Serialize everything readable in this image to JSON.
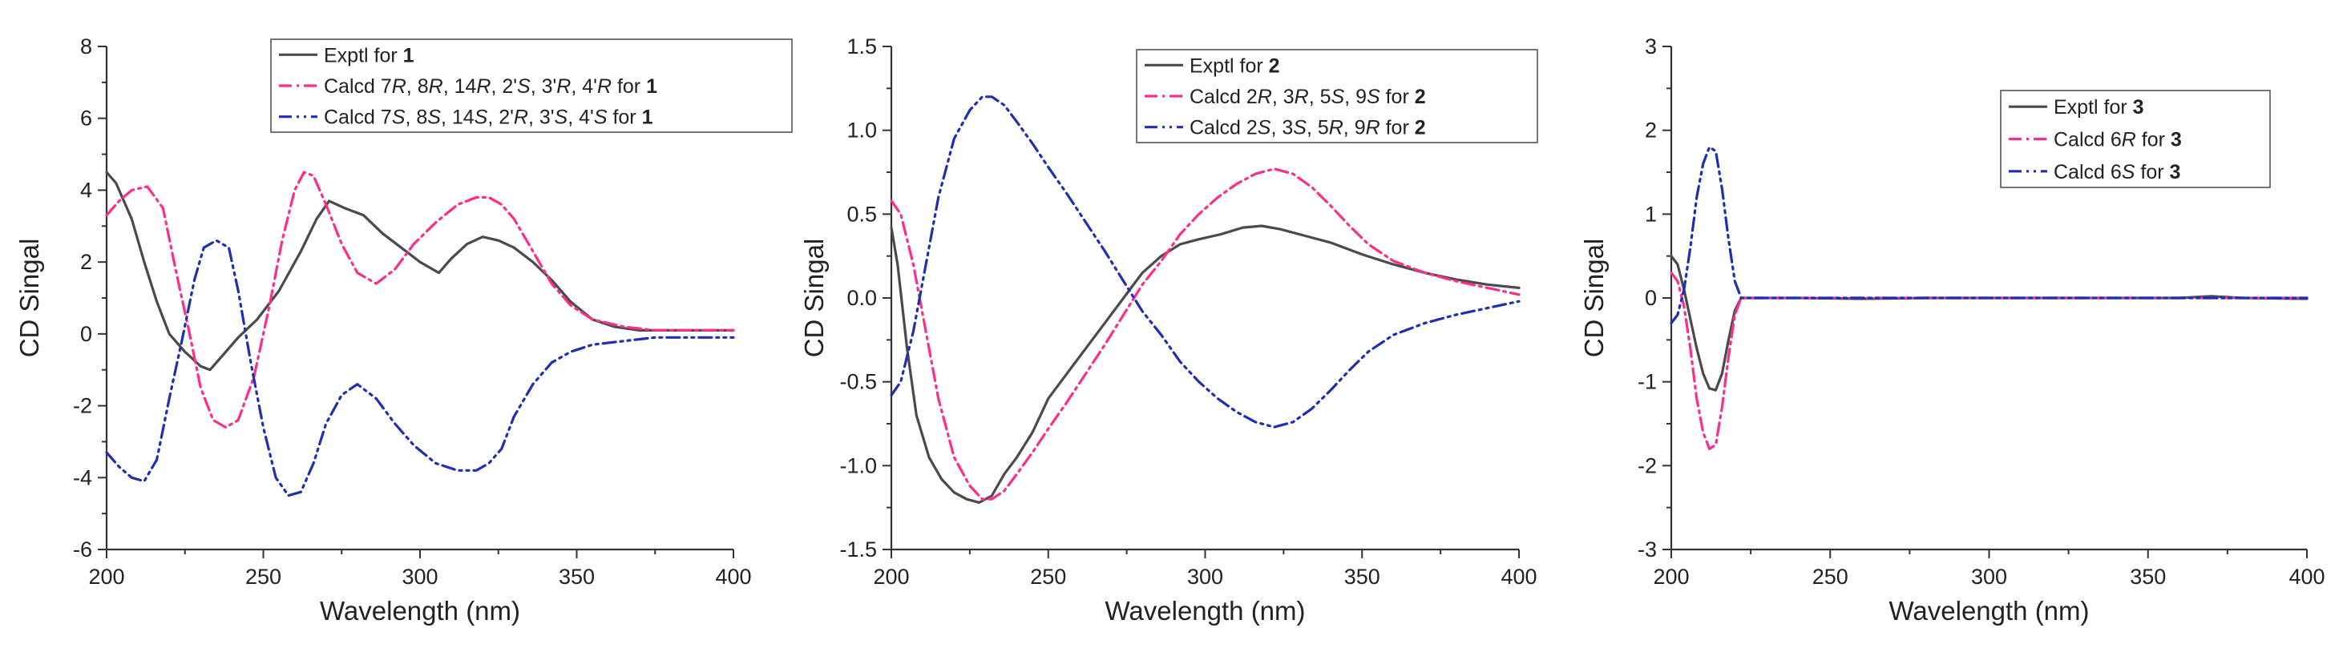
{
  "chart_data": [
    {
      "type": "line",
      "xlabel": "Wavelength (nm)",
      "ylabel": "CD Singal",
      "xlim": [
        200,
        400
      ],
      "ylim": [
        -6,
        8
      ],
      "xticks": [
        200,
        250,
        300,
        350,
        400
      ],
      "yticks": [
        -6,
        -4,
        -2,
        0,
        2,
        4,
        6,
        8
      ],
      "ytick_labels": [
        "-6",
        "-4",
        "-2",
        "0",
        "2",
        "4",
        "6",
        "8"
      ],
      "legend_position": "top-right",
      "series": [
        {
          "name": "Exptl for 1",
          "legend": [
            {
              "t": "Exptl for "
            },
            {
              "t": " 1",
              "b": true
            }
          ],
          "color": "#4a4a4a",
          "dash": "",
          "x": [
            200,
            203,
            208,
            212,
            216,
            220,
            225,
            230,
            233,
            237,
            242,
            248,
            255,
            262,
            267,
            271,
            276,
            282,
            288,
            294,
            300,
            306,
            310,
            315,
            320,
            325,
            330,
            336,
            342,
            348,
            355,
            362,
            370,
            380,
            390,
            400
          ],
          "y": [
            4.5,
            4.2,
            3.2,
            2.0,
            0.9,
            0.0,
            -0.5,
            -0.9,
            -1.0,
            -0.6,
            -0.1,
            0.4,
            1.2,
            2.3,
            3.2,
            3.7,
            3.5,
            3.3,
            2.8,
            2.4,
            2.0,
            1.7,
            2.1,
            2.5,
            2.7,
            2.6,
            2.4,
            2.0,
            1.5,
            0.9,
            0.4,
            0.2,
            0.1,
            0.1,
            0.1,
            0.1
          ]
        },
        {
          "name": "Calcd 7R, 8R, 14R, 2'S, 3'R, 4'R for 1",
          "legend": [
            {
              "t": "Calcd 7"
            },
            {
              "t": "R",
              "i": true
            },
            {
              "t": ", 8"
            },
            {
              "t": "R",
              "i": true
            },
            {
              "t": ", 14"
            },
            {
              "t": "R",
              "i": true
            },
            {
              "t": ", 2'"
            },
            {
              "t": "S",
              "i": true
            },
            {
              "t": ", 3'"
            },
            {
              "t": "R",
              "i": true
            },
            {
              "t": ", 4'"
            },
            {
              "t": "R",
              "i": true
            },
            {
              "t": " for "
            },
            {
              "t": "1",
              "b": true
            }
          ],
          "color": "#ff2d8a",
          "dash": "16,6,3,6",
          "x": [
            200,
            204,
            208,
            213,
            218,
            222,
            226,
            230,
            234,
            238,
            242,
            247,
            252,
            256,
            260,
            263,
            266,
            270,
            275,
            280,
            286,
            292,
            298,
            305,
            312,
            318,
            322,
            326,
            330,
            336,
            342,
            348,
            355,
            365,
            375,
            385,
            400
          ],
          "y": [
            3.3,
            3.7,
            4.0,
            4.1,
            3.5,
            1.8,
            0.2,
            -1.5,
            -2.4,
            -2.6,
            -2.4,
            -1.2,
            0.8,
            2.6,
            4.0,
            4.5,
            4.4,
            3.6,
            2.5,
            1.7,
            1.4,
            1.8,
            2.5,
            3.1,
            3.6,
            3.8,
            3.8,
            3.6,
            3.2,
            2.3,
            1.4,
            0.8,
            0.4,
            0.2,
            0.1,
            0.1,
            0.1
          ]
        },
        {
          "name": "Calcd 7S, 8S, 14S, 2'R, 3'S, 4'S for 1",
          "legend": [
            {
              "t": "Calcd 7"
            },
            {
              "t": "S",
              "i": true
            },
            {
              "t": ", 8"
            },
            {
              "t": "S",
              "i": true
            },
            {
              "t": ", 14"
            },
            {
              "t": "S",
              "i": true
            },
            {
              "t": ", 2'"
            },
            {
              "t": "R",
              "i": true
            },
            {
              "t": ", 3'"
            },
            {
              "t": "S",
              "i": true
            },
            {
              "t": ", 4'"
            },
            {
              "t": "S",
              "i": true
            },
            {
              "t": " for "
            },
            {
              "t": "1",
              "b": true
            }
          ],
          "color": "#1f2fb5",
          "dash": "16,6,3,6,3,6",
          "x": [
            200,
            204,
            208,
            212,
            216,
            220,
            224,
            228,
            231,
            235,
            239,
            242,
            246,
            250,
            254,
            258,
            262,
            266,
            270,
            275,
            280,
            286,
            292,
            298,
            305,
            312,
            318,
            322,
            326,
            330,
            336,
            342,
            348,
            355,
            365,
            375,
            385,
            400
          ],
          "y": [
            -3.3,
            -3.7,
            -4.0,
            -4.1,
            -3.5,
            -1.8,
            -0.2,
            1.5,
            2.4,
            2.6,
            2.4,
            1.2,
            -0.8,
            -2.6,
            -4.0,
            -4.5,
            -4.4,
            -3.6,
            -2.5,
            -1.7,
            -1.4,
            -1.8,
            -2.5,
            -3.1,
            -3.6,
            -3.8,
            -3.8,
            -3.6,
            -3.2,
            -2.3,
            -1.4,
            -0.8,
            -0.5,
            -0.3,
            -0.2,
            -0.1,
            -0.1,
            -0.1
          ]
        }
      ]
    },
    {
      "type": "line",
      "xlabel": "Wavelength (nm)",
      "ylabel": "CD Singal",
      "xlim": [
        200,
        400
      ],
      "ylim": [
        -1.5,
        1.5
      ],
      "xticks": [
        200,
        250,
        300,
        350,
        400
      ],
      "yticks": [
        -1.5,
        -1.0,
        -0.5,
        0.0,
        0.5,
        1.0,
        1.5
      ],
      "ytick_labels": [
        "-1.5",
        "-1.0",
        "-0.5",
        "0.0",
        "0.5",
        "1.0",
        "1.5"
      ],
      "legend_position": "top-right",
      "series": [
        {
          "name": "Exptl for 2",
          "legend": [
            {
              "t": "Exptl for "
            },
            {
              "t": " 2",
              "b": true
            }
          ],
          "color": "#4a4a4a",
          "dash": "",
          "x": [
            200,
            202,
            205,
            208,
            212,
            216,
            220,
            224,
            228,
            232,
            236,
            240,
            245,
            250,
            256,
            262,
            268,
            274,
            280,
            286,
            292,
            298,
            305,
            312,
            318,
            324,
            330,
            340,
            350,
            360,
            370,
            380,
            390,
            400
          ],
          "y": [
            0.42,
            0.2,
            -0.3,
            -0.7,
            -0.95,
            -1.08,
            -1.16,
            -1.2,
            -1.22,
            -1.18,
            -1.05,
            -0.95,
            -0.8,
            -0.6,
            -0.45,
            -0.3,
            -0.15,
            0.0,
            0.15,
            0.25,
            0.32,
            0.35,
            0.38,
            0.42,
            0.43,
            0.41,
            0.38,
            0.33,
            0.26,
            0.2,
            0.15,
            0.11,
            0.08,
            0.06
          ]
        },
        {
          "name": "Calcd 2R, 3R, 5S, 9S for 2",
          "legend": [
            {
              "t": "Calcd 2"
            },
            {
              "t": "R",
              "i": true
            },
            {
              "t": ", 3"
            },
            {
              "t": "R",
              "i": true
            },
            {
              "t": ", 5"
            },
            {
              "t": "S",
              "i": true
            },
            {
              "t": ", 9"
            },
            {
              "t": "S",
              "i": true
            },
            {
              "t": " for "
            },
            {
              "t": "2",
              "b": true
            }
          ],
          "color": "#ff2d8a",
          "dash": "16,6,3,6",
          "x": [
            200,
            203,
            207,
            211,
            215,
            220,
            225,
            229,
            232,
            236,
            240,
            245,
            250,
            256,
            262,
            268,
            274,
            280,
            286,
            292,
            298,
            304,
            310,
            316,
            322,
            328,
            334,
            340,
            346,
            352,
            360,
            370,
            380,
            390,
            400
          ],
          "y": [
            0.58,
            0.5,
            0.2,
            -0.2,
            -0.6,
            -0.95,
            -1.12,
            -1.2,
            -1.2,
            -1.15,
            -1.05,
            -0.92,
            -0.78,
            -0.62,
            -0.45,
            -0.28,
            -0.1,
            0.08,
            0.22,
            0.38,
            0.5,
            0.6,
            0.68,
            0.74,
            0.77,
            0.74,
            0.66,
            0.55,
            0.43,
            0.32,
            0.22,
            0.15,
            0.1,
            0.06,
            0.02
          ]
        },
        {
          "name": "Calcd 2S, 3S, 5R, 9R for 2",
          "legend": [
            {
              "t": "Calcd 2"
            },
            {
              "t": "S",
              "i": true
            },
            {
              "t": ", 3"
            },
            {
              "t": "S",
              "i": true
            },
            {
              "t": ", 5"
            },
            {
              "t": "R",
              "i": true
            },
            {
              "t": ", 9"
            },
            {
              "t": "R",
              "i": true
            },
            {
              "t": "  for "
            },
            {
              "t": "2",
              "b": true
            }
          ],
          "color": "#1f2fb5",
          "dash": "16,6,3,6,3,6",
          "x": [
            200,
            203,
            207,
            211,
            215,
            220,
            225,
            229,
            232,
            236,
            240,
            245,
            250,
            256,
            262,
            268,
            274,
            280,
            286,
            292,
            298,
            304,
            310,
            316,
            322,
            328,
            334,
            340,
            346,
            352,
            360,
            370,
            380,
            390,
            400
          ],
          "y": [
            -0.58,
            -0.5,
            -0.2,
            0.2,
            0.6,
            0.95,
            1.12,
            1.2,
            1.2,
            1.15,
            1.05,
            0.92,
            0.78,
            0.62,
            0.45,
            0.28,
            0.1,
            -0.08,
            -0.22,
            -0.38,
            -0.5,
            -0.6,
            -0.68,
            -0.74,
            -0.77,
            -0.74,
            -0.66,
            -0.55,
            -0.43,
            -0.32,
            -0.22,
            -0.15,
            -0.1,
            -0.06,
            -0.02
          ]
        }
      ]
    },
    {
      "type": "line",
      "xlabel": "Wavelength (nm)",
      "ylabel": "CD Singal",
      "xlim": [
        200,
        400
      ],
      "ylim": [
        -3,
        3
      ],
      "xticks": [
        200,
        250,
        300,
        350,
        400
      ],
      "yticks": [
        -3,
        -2,
        -1,
        0,
        1,
        2,
        3
      ],
      "ytick_labels": [
        "-3",
        "-2",
        "-1",
        "0",
        "1",
        "2",
        "3"
      ],
      "legend_position": "top-right",
      "series": [
        {
          "name": "Exptl for 3",
          "legend": [
            {
              "t": "Exptl for "
            },
            {
              "t": "3",
              "b": true
            }
          ],
          "color": "#4a4a4a",
          "dash": "",
          "x": [
            200,
            202,
            204,
            206,
            208,
            210,
            212,
            214,
            216,
            218,
            220,
            222,
            225,
            240,
            260,
            280,
            300,
            320,
            340,
            360,
            370,
            380,
            400
          ],
          "y": [
            0.5,
            0.4,
            0.1,
            -0.25,
            -0.6,
            -0.9,
            -1.08,
            -1.1,
            -0.9,
            -0.5,
            -0.15,
            0.0,
            0.0,
            0.0,
            -0.01,
            0.0,
            0.0,
            0.0,
            0.0,
            0.0,
            0.02,
            0.0,
            -0.01
          ]
        },
        {
          "name": "Calcd 6R for 3",
          "legend": [
            {
              "t": "Calcd 6"
            },
            {
              "t": "R",
              "i": true
            },
            {
              "t": " for "
            },
            {
              "t": "3",
              "b": true
            }
          ],
          "color": "#ff2d8a",
          "dash": "16,6,3,6",
          "x": [
            200,
            202,
            204,
            206,
            208,
            210,
            212,
            214,
            216,
            218,
            220,
            222,
            225,
            240,
            260,
            280,
            300,
            320,
            340,
            360,
            380,
            400
          ],
          "y": [
            0.3,
            0.2,
            -0.1,
            -0.6,
            -1.2,
            -1.6,
            -1.8,
            -1.75,
            -1.3,
            -0.7,
            -0.2,
            0.0,
            0.0,
            0.0,
            0.0,
            0.0,
            0.0,
            0.0,
            0.0,
            0.0,
            0.0,
            0.0
          ]
        },
        {
          "name": "Calcd 6S for 3",
          "legend": [
            {
              "t": "Calcd 6"
            },
            {
              "t": "S",
              "i": true
            },
            {
              "t": " for "
            },
            {
              "t": "3",
              "b": true
            }
          ],
          "color": "#1f2fb5",
          "dash": "16,6,3,6,3,6",
          "x": [
            200,
            202,
            204,
            206,
            208,
            210,
            212,
            214,
            216,
            218,
            220,
            222,
            225,
            240,
            260,
            280,
            300,
            320,
            340,
            360,
            380,
            400
          ],
          "y": [
            -0.3,
            -0.2,
            0.1,
            0.6,
            1.2,
            1.6,
            1.8,
            1.75,
            1.3,
            0.7,
            0.2,
            0.0,
            0.0,
            0.0,
            0.0,
            0.0,
            0.0,
            0.0,
            0.0,
            0.0,
            0.0,
            0.0
          ]
        }
      ]
    }
  ]
}
